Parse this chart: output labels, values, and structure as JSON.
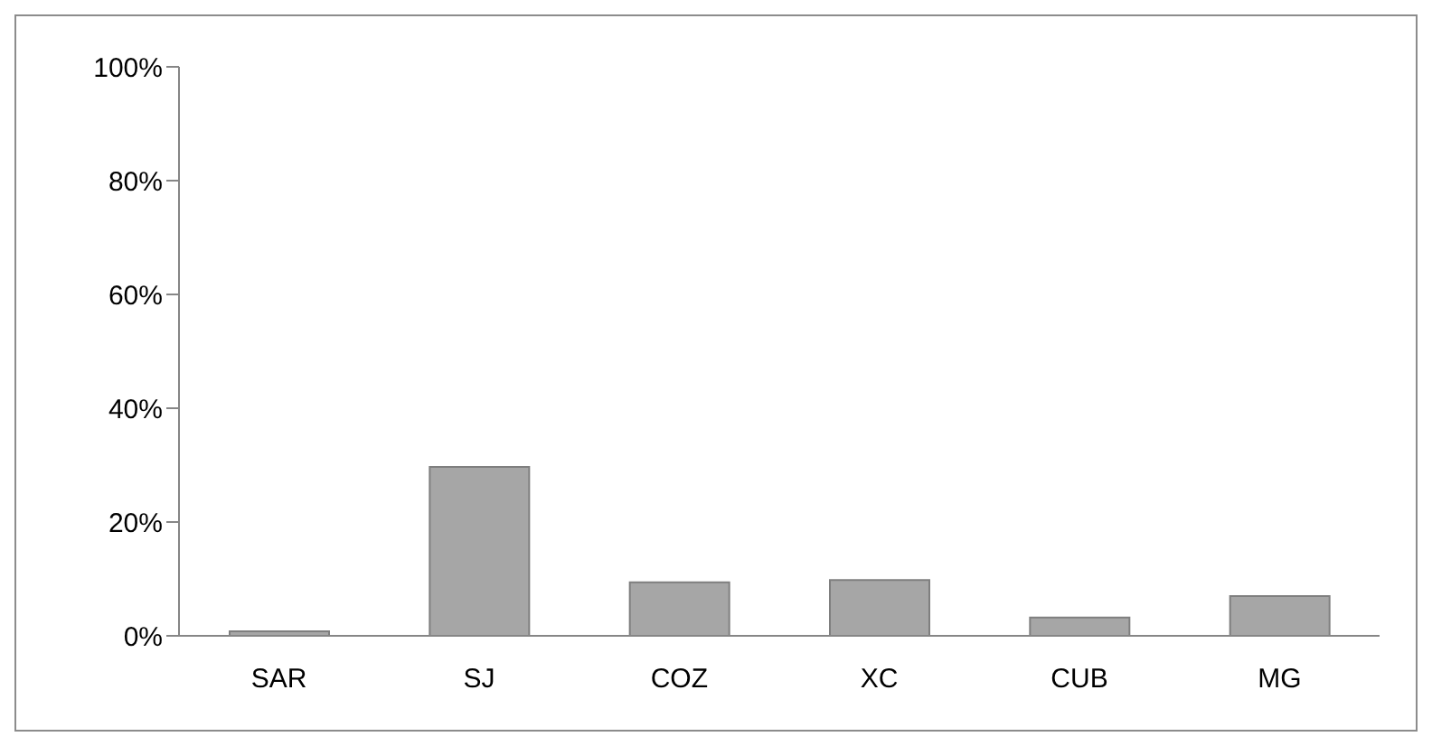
{
  "chart_data": {
    "type": "bar",
    "categories": [
      "SAR",
      "SJ",
      "COZ",
      "XC",
      "CUB",
      "MG"
    ],
    "values": [
      0.8,
      29.7,
      9.4,
      9.8,
      3.2,
      7.0
    ],
    "color": "#a6a6a6",
    "ylim": [
      0,
      100
    ],
    "yticks": [
      {
        "value": 0,
        "label": "0%"
      },
      {
        "value": 20,
        "label": "20%"
      },
      {
        "value": 40,
        "label": "40%"
      },
      {
        "value": 60,
        "label": "60%"
      },
      {
        "value": 80,
        "label": "80%"
      },
      {
        "value": 100,
        "label": "100%"
      }
    ],
    "grid": false
  }
}
